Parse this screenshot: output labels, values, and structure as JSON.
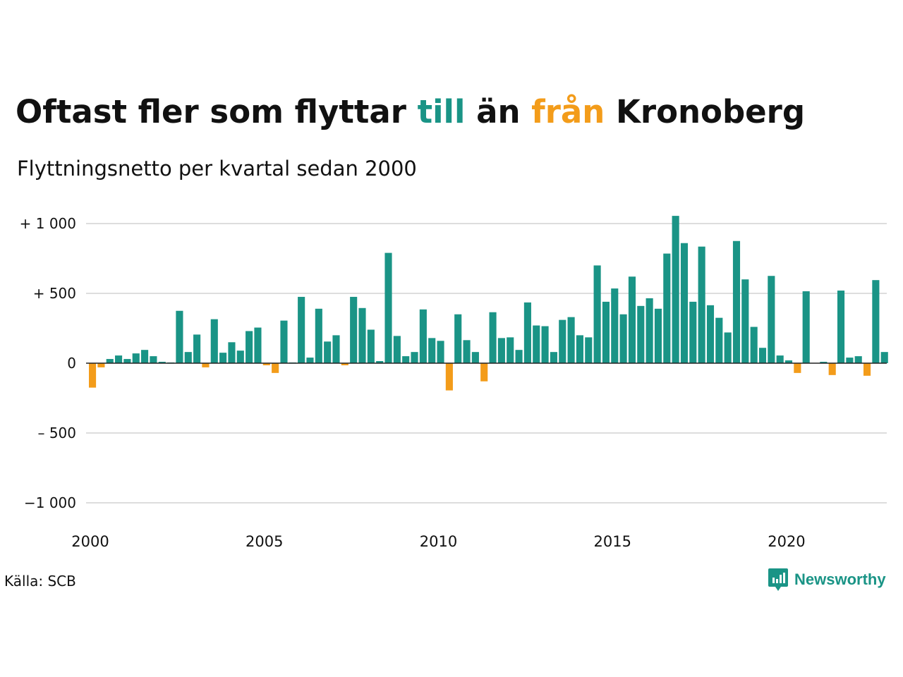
{
  "title": {
    "part1": "Oftast fler som flyttar ",
    "till": "till",
    "part2": " än ",
    "fran": "från",
    "part3": " Kronoberg"
  },
  "subtitle": "Flyttningsnetto per kvartal sedan 2000",
  "source": "Källa: SCB",
  "brand": {
    "name": "Newsworthy",
    "icon": "newsworthy-logo-icon"
  },
  "colors": {
    "positive": "#1a9486",
    "negative": "#f39c1a",
    "grid": "#dddddd",
    "axis": "#222222"
  },
  "chart_data": {
    "type": "bar",
    "title": "Oftast fler som flyttar till än från Kronoberg",
    "subtitle": "Flyttningsnetto per kvartal sedan 2000",
    "ylim": [
      -1000,
      1000
    ],
    "y_ticks": [
      {
        "value": 1000,
        "label": "+ 1 000"
      },
      {
        "value": 500,
        "label": "+   500"
      },
      {
        "value": 0,
        "label": "0"
      },
      {
        "value": -500,
        "label": "–  500"
      },
      {
        "value": -1000,
        "label": "−1 000"
      }
    ],
    "x_ticks": [
      "2000",
      "2005",
      "2010",
      "2015",
      "2020"
    ],
    "grid": true,
    "series": [
      {
        "values": [
          -175,
          -30,
          30,
          55,
          30,
          70,
          95,
          50,
          10,
          5,
          375,
          80,
          205,
          -30,
          315,
          75,
          150,
          90,
          230,
          255,
          -15,
          -70,
          305,
          5,
          475,
          40,
          390,
          155,
          200,
          -15,
          475,
          395,
          240,
          15,
          790,
          195,
          50,
          80,
          385,
          180,
          160,
          -195,
          350,
          165,
          80,
          -130,
          365,
          180,
          185,
          95,
          435,
          270,
          265,
          80,
          310,
          330,
          200,
          185,
          700,
          440,
          535,
          350,
          620,
          410,
          465,
          390,
          785,
          1055,
          860,
          440,
          835,
          415,
          325,
          220,
          875,
          600,
          260,
          110,
          625,
          55,
          20,
          -70,
          515,
          0,
          10,
          -85,
          520,
          40,
          50,
          -90,
          595,
          80
        ]
      }
    ]
  }
}
